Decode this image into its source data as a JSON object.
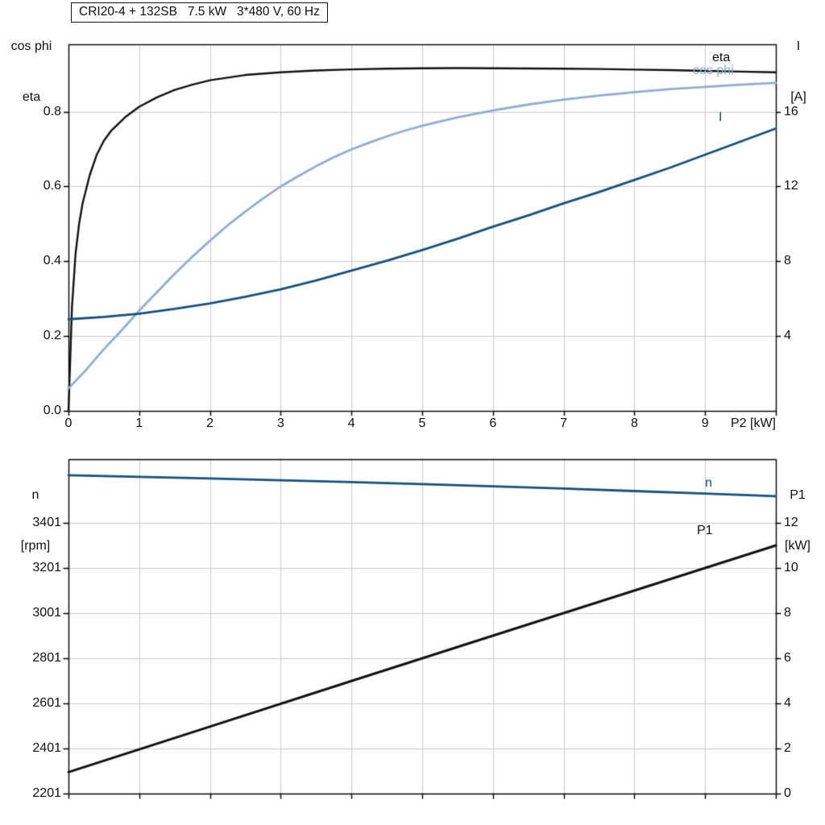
{
  "colors": {
    "grid": "#c9c9c9",
    "axis": "#000000",
    "eta_curve": "#111111",
    "cos_phi_curve": "#8fadd0",
    "current_curve": "#15517d",
    "speed_curve": "#15517d",
    "power_curve": "#111111"
  },
  "axes_labels": {
    "top_left": [
      "cos phi",
      "eta"
    ],
    "top_right": [
      "I",
      "[A]"
    ],
    "bottom_left": [
      "n",
      "[rpm]"
    ],
    "bottom_right": [
      "P1",
      "[kW]"
    ]
  },
  "curve_labels": {
    "eta": "eta",
    "cos_phi": "cos phi",
    "current": "I",
    "speed": "n",
    "power": "P1"
  },
  "chart_data": [
    {
      "type": "line",
      "title": "CRI20-4 + 132SB   7.5 kW   3*480 V, 60 Hz",
      "xlabel": "P2 [kW]",
      "ylabel_left": "cos phi / eta",
      "ylabel_right": "I [A]",
      "xlim": [
        0,
        10
      ],
      "ylim_left": [
        0,
        0.98
      ],
      "ylim_right": [
        0,
        19.6
      ],
      "grid": true,
      "legend_position": "curve-end-labels",
      "x_grid": [
        0,
        1,
        2,
        3,
        4,
        5,
        6,
        7,
        8,
        9,
        10
      ],
      "x_ticks": {
        "values": [
          0,
          1,
          2,
          3,
          4,
          5,
          6,
          7,
          8,
          9
        ],
        "labels": [
          "0",
          "1",
          "2",
          "3",
          "4",
          "5",
          "6",
          "7",
          "8",
          "9"
        ]
      },
      "y_ticks_left": {
        "values": [
          0,
          0.2,
          0.4,
          0.6,
          0.8
        ],
        "labels": [
          "0.0",
          "0.2",
          "0.4",
          "0.6",
          "0.8"
        ]
      },
      "y_ticks_right": {
        "values": [
          4,
          8,
          12,
          16
        ],
        "labels": [
          "4",
          "8",
          "12",
          "16"
        ]
      },
      "series": [
        {
          "name": "eta",
          "axis": "left",
          "color": "#111111",
          "width": 2.4,
          "x": [
            0,
            0.05,
            0.1,
            0.15,
            0.2,
            0.3,
            0.4,
            0.5,
            0.6,
            0.8,
            1,
            1.25,
            1.5,
            1.75,
            2,
            2.5,
            3,
            3.5,
            4,
            4.5,
            5,
            5.5,
            6,
            6.5,
            7,
            7.5,
            8,
            8.5,
            9,
            9.5,
            10
          ],
          "values": [
            0,
            0.28,
            0.42,
            0.5,
            0.555,
            0.63,
            0.685,
            0.722,
            0.748,
            0.785,
            0.813,
            0.838,
            0.858,
            0.872,
            0.884,
            0.898,
            0.905,
            0.91,
            0.913,
            0.915,
            0.916,
            0.9165,
            0.916,
            0.9155,
            0.915,
            0.914,
            0.9125,
            0.911,
            0.909,
            0.907,
            0.905
          ]
        },
        {
          "name": "cos phi",
          "axis": "left",
          "color": "#8fadd0",
          "width": 2.8,
          "x": [
            0,
            0.25,
            0.5,
            0.75,
            1,
            1.25,
            1.5,
            1.75,
            2,
            2.25,
            2.5,
            2.75,
            3,
            3.25,
            3.5,
            3.75,
            4,
            4.25,
            4.5,
            4.75,
            5,
            5.5,
            6,
            6.5,
            7,
            7.5,
            8,
            8.5,
            9,
            9.5,
            10
          ],
          "values": [
            0.06,
            0.11,
            0.165,
            0.215,
            0.268,
            0.317,
            0.366,
            0.412,
            0.455,
            0.496,
            0.533,
            0.568,
            0.6,
            0.628,
            0.654,
            0.678,
            0.699,
            0.717,
            0.734,
            0.749,
            0.762,
            0.785,
            0.803,
            0.819,
            0.832,
            0.843,
            0.852,
            0.86,
            0.866,
            0.872,
            0.877
          ]
        },
        {
          "name": "I",
          "axis": "right",
          "color": "#15517d",
          "width": 2.8,
          "x": [
            0,
            0.5,
            1,
            1.5,
            2,
            2.5,
            3,
            3.5,
            4,
            4.5,
            5,
            5.5,
            6,
            6.5,
            7,
            7.5,
            8,
            8.5,
            9,
            9.5,
            10
          ],
          "values": [
            4.9,
            5.02,
            5.2,
            5.45,
            5.75,
            6.1,
            6.5,
            6.97,
            7.5,
            8.03,
            8.6,
            9.2,
            9.85,
            10.45,
            11.1,
            11.7,
            12.35,
            13.0,
            13.7,
            14.4,
            15.1
          ]
        }
      ]
    },
    {
      "type": "line",
      "title": "",
      "xlabel": "",
      "ylabel_left": "n [rpm]",
      "ylabel_right": "P1 [kW]",
      "xlim": [
        0,
        10
      ],
      "ylim_left": [
        2201,
        3683
      ],
      "ylim_right": [
        0,
        14.82
      ],
      "grid": true,
      "legend_position": "curve-end-labels",
      "x_grid": [
        0,
        1,
        2,
        3,
        4,
        5,
        6,
        7,
        8,
        9,
        10
      ],
      "x_ticks": {
        "values": [],
        "labels": []
      },
      "y_ticks_left": {
        "values": [
          2201,
          2401,
          2601,
          2801,
          3001,
          3201,
          3401
        ],
        "labels": [
          "2201",
          "2401",
          "2601",
          "2801",
          "3001",
          "3201",
          "3401"
        ]
      },
      "y_ticks_right": {
        "values": [
          0,
          2,
          4,
          6,
          8,
          10,
          12
        ],
        "labels": [
          "0",
          "2",
          "4",
          "6",
          "8",
          "10",
          "12"
        ]
      },
      "series": [
        {
          "name": "n",
          "axis": "left",
          "color": "#15517d",
          "width": 2.8,
          "x": [
            0,
            1,
            2,
            3,
            4,
            5,
            6,
            7,
            8,
            9,
            10
          ],
          "values": [
            3612,
            3605,
            3598,
            3590,
            3582,
            3573,
            3563,
            3553,
            3542,
            3531,
            3519
          ]
        },
        {
          "name": "P1",
          "axis": "right",
          "color": "#111111",
          "width": 3,
          "x": [
            0,
            2,
            4,
            6,
            8,
            10
          ],
          "values": [
            0.95,
            2.97,
            4.99,
            7.0,
            9.0,
            11.0
          ]
        }
      ]
    }
  ]
}
